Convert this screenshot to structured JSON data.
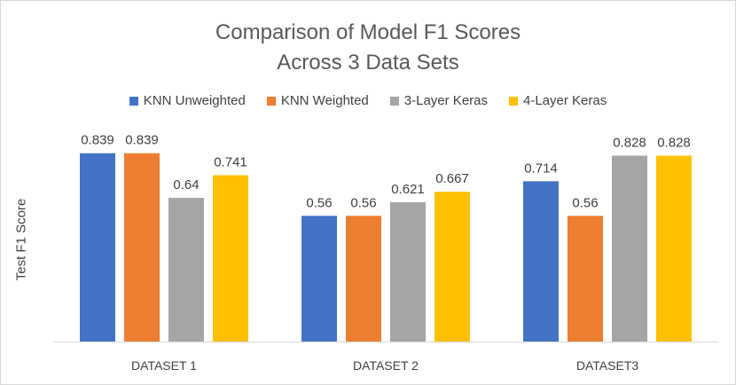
{
  "chart_data": {
    "type": "bar",
    "title": [
      "Comparison of Model F1 Scores",
      "Across 3 Data Sets"
    ],
    "xlabel": "",
    "ylabel": "Test F1 Score",
    "ylim": [
      0,
      1
    ],
    "grid": false,
    "legend_position": "top",
    "categories": [
      "DATASET 1",
      "DATASET 2",
      "DATASET3"
    ],
    "series": [
      {
        "name": "KNN Unweighted",
        "color": "#4472c4",
        "values": [
          0.839,
          0.56,
          0.714
        ],
        "labels": [
          "0.839",
          "0.56",
          "0.714"
        ]
      },
      {
        "name": "KNN Weighted",
        "color": "#ed7d31",
        "values": [
          0.839,
          0.56,
          0.56
        ],
        "labels": [
          "0.839",
          "0.56",
          "0.56"
        ]
      },
      {
        "name": "3-Layer Keras",
        "color": "#a5a5a5",
        "values": [
          0.64,
          0.621,
          0.828
        ],
        "labels": [
          "0.64",
          "0.621",
          "0.828"
        ]
      },
      {
        "name": "4-Layer Keras",
        "color": "#ffc000",
        "values": [
          0.741,
          0.667,
          0.828
        ],
        "labels": [
          "0.741",
          "0.667",
          "0.828"
        ]
      }
    ]
  }
}
